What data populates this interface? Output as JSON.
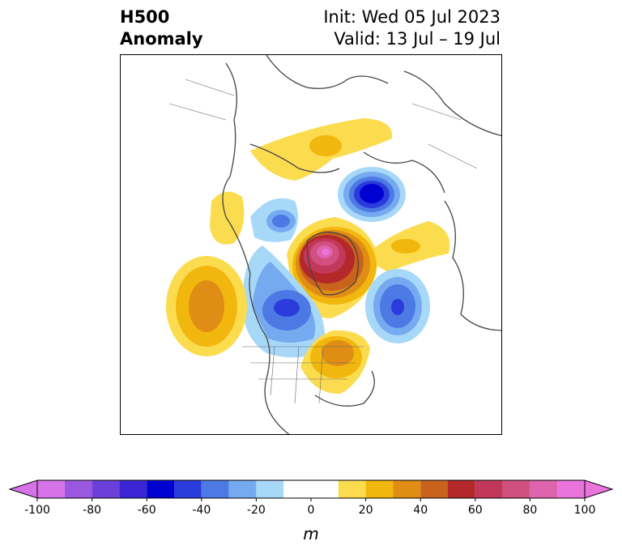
{
  "title": {
    "left_line1": "H500",
    "left_line2": "Anomaly",
    "right_line1": "Init: Wed 05 Jul 2023",
    "right_line2": "Valid: 13 Jul – 19 Jul"
  },
  "colorbar": {
    "unit_label": "m",
    "ticks": [
      "-100",
      "-80",
      "-60",
      "-40",
      "-20",
      "0",
      "20",
      "40",
      "60",
      "80",
      "100"
    ],
    "tick_values": [
      -100,
      -80,
      -60,
      -40,
      -20,
      0,
      20,
      40,
      60,
      80,
      100
    ],
    "bins": [
      -100,
      -90,
      -80,
      -70,
      -60,
      -50,
      -40,
      -30,
      -20,
      -10,
      10,
      20,
      30,
      40,
      50,
      60,
      70,
      80,
      90,
      100
    ],
    "colors": [
      "#d673e8",
      "#9c57e0",
      "#6b3fda",
      "#3a26d4",
      "#0000d0",
      "#2a3cdc",
      "#4c79e4",
      "#76aaf0",
      "#a8d8f8",
      "#ffffff",
      "#fbdc4f",
      "#f2b70e",
      "#e08d16",
      "#c9621c",
      "#b5282a",
      "#c2385a",
      "#d05080",
      "#de64ae",
      "#ea74dc"
    ],
    "under_color": "#d673e8",
    "over_color": "#ea74dc"
  },
  "map": {
    "projection": "polar-stereographic-north",
    "field": "500 hPa geopotential height anomaly",
    "anomaly_centers": [
      {
        "sign": "negative",
        "region": "Kara Sea / north of Siberia",
        "peak_m": -65
      },
      {
        "sign": "positive",
        "region": "Greenland",
        "peak_m": 85
      },
      {
        "sign": "positive",
        "region": "northern Siberia / Laptev region",
        "peak_m": 25
      },
      {
        "sign": "positive",
        "region": "Barents Sea / Scandinavia",
        "peak_m": 20
      },
      {
        "sign": "positive",
        "region": "North Atlantic east of Hudson Bay",
        "peak_m": 25
      },
      {
        "sign": "negative",
        "region": "Hudson Bay / central Canada",
        "peak_m": -50
      },
      {
        "sign": "negative",
        "region": "Alaska / Beaufort",
        "peak_m": -35
      },
      {
        "sign": "negative",
        "region": "North Atlantic west of Europe",
        "peak_m": -45
      },
      {
        "sign": "positive",
        "region": "North Pacific",
        "peak_m": 45
      },
      {
        "sign": "positive",
        "region": "Eastern North America",
        "peak_m": 40
      }
    ]
  }
}
